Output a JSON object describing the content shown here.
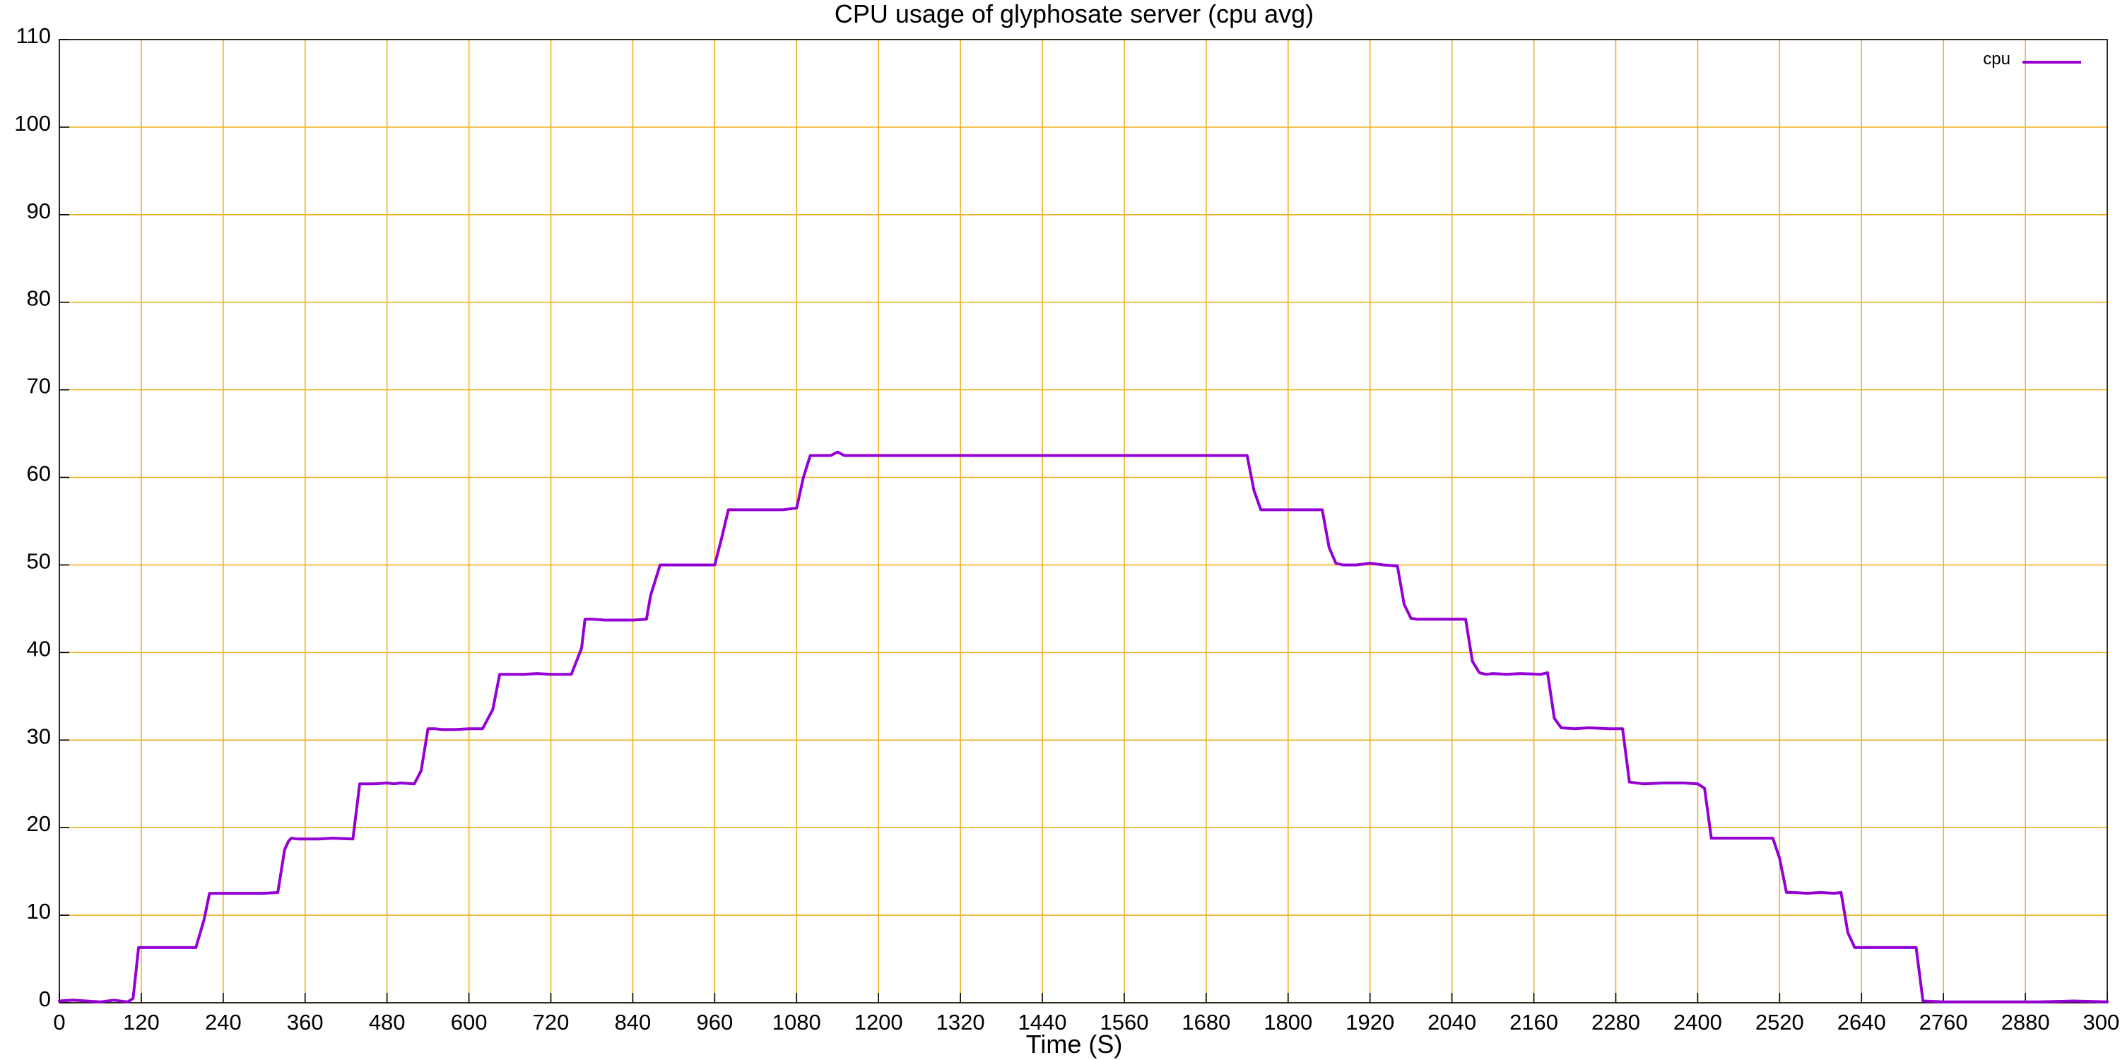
{
  "chart_data": {
    "type": "line",
    "title": "CPU usage of glyphosate server (cpu avg)",
    "xlabel": "Time (S)",
    "ylabel": "",
    "xlim": [
      0,
      3000
    ],
    "ylim": [
      0,
      110
    ],
    "xticks": [
      0,
      120,
      240,
      360,
      480,
      600,
      720,
      840,
      960,
      1080,
      1200,
      1320,
      1440,
      1560,
      1680,
      1800,
      1920,
      2040,
      2160,
      2280,
      2400,
      2520,
      2640,
      2760,
      2880,
      3000
    ],
    "yticks": [
      0,
      10,
      20,
      30,
      40,
      50,
      60,
      70,
      80,
      90,
      100,
      110
    ],
    "grid": true,
    "legend": "top-right",
    "colors": {
      "series": "#9400d3",
      "grid": "#f0b020",
      "axis": "#000000"
    },
    "series": [
      {
        "name": "cpu",
        "x": [
          0,
          20,
          60,
          80,
          100,
          108,
          116,
          140,
          180,
          200,
          212,
          220,
          230,
          240,
          260,
          300,
          320,
          330,
          336,
          340,
          350,
          380,
          400,
          430,
          440,
          450,
          460,
          480,
          490,
          500,
          520,
          530,
          540,
          550,
          560,
          580,
          600,
          620,
          635,
          645,
          660,
          680,
          700,
          720,
          750,
          765,
          770,
          780,
          800,
          840,
          860,
          866,
          880,
          890,
          900,
          940,
          960,
          970,
          980,
          990,
          1000,
          1020,
          1040,
          1060,
          1080,
          1090,
          1100,
          1120,
          1130,
          1140,
          1150,
          1200,
          1300,
          1400,
          1500,
          1600,
          1700,
          1740,
          1750,
          1760,
          1780,
          1800,
          1830,
          1850,
          1860,
          1870,
          1880,
          1900,
          1920,
          1940,
          1960,
          1970,
          1980,
          1990,
          2000,
          2040,
          2060,
          2070,
          2080,
          2090,
          2100,
          2120,
          2140,
          2170,
          2180,
          2190,
          2200,
          2220,
          2240,
          2270,
          2290,
          2300,
          2320,
          2350,
          2380,
          2400,
          2410,
          2420,
          2440,
          2480,
          2510,
          2520,
          2530,
          2540,
          2560,
          2580,
          2600,
          2610,
          2620,
          2630,
          2660,
          2700,
          2720,
          2730,
          2760,
          2800,
          2900,
          2950,
          3000
        ],
        "y": [
          0.2,
          0.3,
          0.1,
          0.3,
          0.1,
          0.5,
          6.3,
          6.3,
          6.3,
          6.3,
          9.5,
          12.5,
          12.5,
          12.5,
          12.5,
          12.5,
          12.6,
          17.5,
          18.5,
          18.8,
          18.7,
          18.7,
          18.8,
          18.7,
          25.0,
          25.0,
          25.0,
          25.1,
          25.0,
          25.1,
          25.0,
          26.5,
          31.3,
          31.3,
          31.2,
          31.2,
          31.3,
          31.3,
          33.5,
          37.5,
          37.5,
          37.5,
          37.6,
          37.5,
          37.5,
          40.5,
          43.8,
          43.8,
          43.7,
          43.7,
          43.8,
          46.5,
          50.0,
          50.0,
          50.0,
          50.0,
          50.0,
          53.0,
          56.3,
          56.3,
          56.3,
          56.3,
          56.3,
          56.3,
          56.5,
          60.0,
          62.5,
          62.5,
          62.5,
          62.9,
          62.5,
          62.5,
          62.5,
          62.5,
          62.5,
          62.5,
          62.5,
          62.5,
          58.5,
          56.3,
          56.3,
          56.3,
          56.3,
          56.3,
          52.0,
          50.2,
          50.0,
          50.0,
          50.2,
          50.0,
          49.9,
          45.5,
          43.9,
          43.8,
          43.8,
          43.8,
          43.8,
          39.0,
          37.7,
          37.5,
          37.6,
          37.5,
          37.6,
          37.5,
          37.7,
          32.5,
          31.4,
          31.3,
          31.4,
          31.3,
          31.3,
          25.2,
          25.0,
          25.1,
          25.1,
          25.0,
          24.5,
          18.8,
          18.8,
          18.8,
          18.8,
          16.5,
          12.6,
          12.6,
          12.5,
          12.6,
          12.5,
          12.6,
          8.0,
          6.3,
          6.3,
          6.3,
          6.3,
          0.2,
          0.1,
          0.1,
          0.1,
          0.2,
          0.1
        ]
      }
    ]
  }
}
